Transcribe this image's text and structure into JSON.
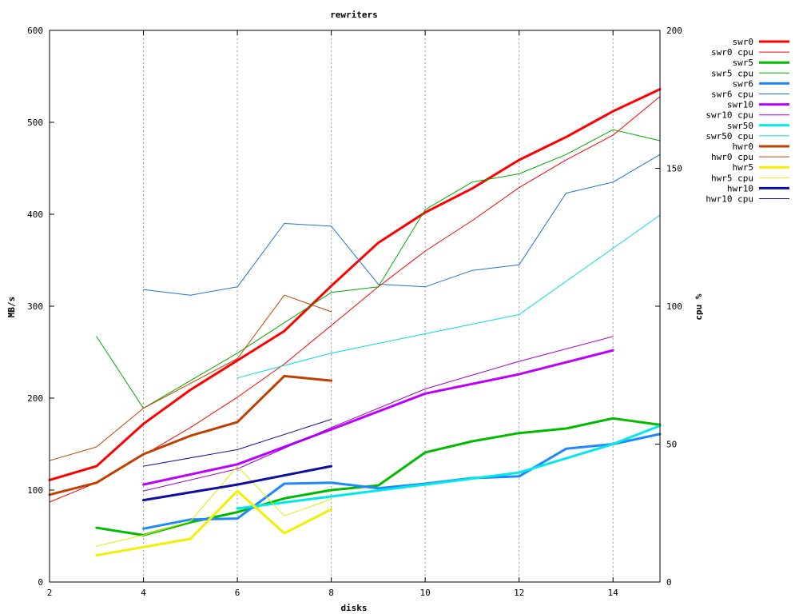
{
  "chart_data": {
    "type": "line",
    "title": "rewriters",
    "xlabel": "disks",
    "ylabel": "MB/s",
    "y2label": "cpu %",
    "xlim": [
      2,
      15
    ],
    "ylim": [
      0,
      600
    ],
    "y2lim": [
      0,
      200
    ],
    "xticks": [
      2,
      4,
      6,
      8,
      10,
      12,
      14
    ],
    "yticks": [
      0,
      100,
      200,
      300,
      400,
      500,
      600
    ],
    "y2ticks": [
      0,
      50,
      100,
      150,
      200
    ],
    "grid": "vertical dotted at x=4,6,8,10,12,14",
    "legend": "top-right, outside plot",
    "series": [
      {
        "name": "swr0",
        "axis": "y",
        "color": "#ff0000",
        "width": 3,
        "x": [
          2,
          3,
          4,
          5,
          6,
          7,
          8,
          9,
          10,
          11,
          12,
          13,
          14,
          15
        ],
        "values": [
          111,
          126,
          172,
          209,
          241,
          273,
          322,
          369,
          402,
          428,
          459,
          484,
          512,
          536
        ]
      },
      {
        "name": "swr0 cpu",
        "axis": "y2",
        "color": "#ff0000",
        "width": 1,
        "x": [
          2,
          3,
          4,
          5,
          6,
          7,
          8,
          9,
          10,
          11,
          12,
          13,
          14,
          15
        ],
        "values": [
          29,
          36,
          46,
          56,
          67,
          79,
          93,
          107,
          120,
          131,
          143,
          153,
          162,
          176
        ]
      },
      {
        "name": "swr5",
        "axis": "y",
        "color": "#00bb00",
        "width": 3,
        "x": [
          3,
          4,
          5,
          6,
          7,
          8,
          9,
          10,
          11,
          12,
          13,
          14,
          15
        ],
        "values": [
          59,
          51,
          65,
          76,
          91,
          100,
          105,
          141,
          153,
          162,
          167,
          178,
          171
        ]
      },
      {
        "name": "swr5 cpu",
        "axis": "y2",
        "color": "#00aa00",
        "width": 1,
        "x": [
          3,
          4,
          5,
          6,
          7,
          8,
          9,
          10,
          11,
          12,
          13,
          14,
          15
        ],
        "values": [
          89,
          63,
          73,
          83,
          94,
          105,
          107,
          135,
          145,
          148,
          155,
          164,
          160
        ]
      },
      {
        "name": "swr6",
        "axis": "y",
        "color": "#1e88ff",
        "width": 3,
        "x": [
          4,
          5,
          6,
          7,
          8,
          9,
          10,
          11,
          12,
          13,
          14,
          15
        ],
        "values": [
          58,
          68,
          69,
          107,
          108,
          102,
          107,
          113,
          115,
          145,
          150,
          161
        ]
      },
      {
        "name": "swr6 cpu",
        "axis": "y2",
        "color": "#1e73d8",
        "width": 1,
        "x": [
          4,
          5,
          6,
          7,
          8,
          9,
          10,
          11,
          12,
          13,
          14,
          15
        ],
        "values": [
          106,
          104,
          107,
          130,
          129,
          108,
          107,
          113,
          115,
          141,
          145,
          155
        ]
      },
      {
        "name": "swr10",
        "axis": "y",
        "color": "#bb00ff",
        "width": 3,
        "x": [
          4,
          6,
          8,
          10,
          12,
          14
        ],
        "values": [
          106,
          128,
          166,
          205,
          226,
          252
        ]
      },
      {
        "name": "swr10 cpu",
        "axis": "y2",
        "color": "#9900dd",
        "width": 1,
        "x": [
          4,
          6,
          8,
          10,
          12,
          14
        ],
        "values": [
          33,
          41,
          56,
          70,
          80,
          89
        ]
      },
      {
        "name": "swr50",
        "axis": "y",
        "color": "#00e8e8",
        "width": 3,
        "x": [
          6,
          8,
          10,
          12,
          14,
          15
        ],
        "values": [
          80,
          93,
          106,
          119,
          150,
          170
        ]
      },
      {
        "name": "swr50 cpu",
        "axis": "y2",
        "color": "#00dddd",
        "width": 1,
        "x": [
          6,
          8,
          10,
          12,
          14,
          15
        ],
        "values": [
          74,
          83,
          90,
          97,
          121,
          133
        ]
      },
      {
        "name": "hwr0",
        "axis": "y",
        "color": "#c04000",
        "width": 3,
        "x": [
          2,
          3,
          4,
          5,
          6,
          7,
          8
        ],
        "values": [
          95,
          108,
          139,
          159,
          174,
          224,
          219
        ]
      },
      {
        "name": "hwr0 cpu",
        "axis": "y2",
        "color": "#c04000",
        "width": 1,
        "x": [
          2,
          3,
          4,
          5,
          6,
          7,
          8
        ],
        "values": [
          44,
          49,
          63,
          72,
          81,
          104,
          98
        ]
      },
      {
        "name": "hwr5",
        "axis": "y",
        "color": "#f0f000",
        "width": 3,
        "x": [
          3,
          4,
          5,
          6,
          7,
          8
        ],
        "values": [
          29,
          38,
          47,
          99,
          53,
          79
        ]
      },
      {
        "name": "hwr5 cpu",
        "axis": "y2",
        "color": "#e8e800",
        "width": 1,
        "x": [
          3,
          4,
          5,
          6,
          7,
          8
        ],
        "values": [
          13,
          17,
          22,
          42,
          24,
          30
        ]
      },
      {
        "name": "hwr10",
        "axis": "y",
        "color": "#1010a0",
        "width": 3,
        "x": [
          4,
          6,
          8
        ],
        "values": [
          89,
          106,
          126
        ]
      },
      {
        "name": "hwr10 cpu",
        "axis": "y2",
        "color": "#1010a0",
        "width": 1,
        "x": [
          4,
          6,
          8
        ],
        "values": [
          42,
          48,
          59
        ]
      }
    ]
  }
}
